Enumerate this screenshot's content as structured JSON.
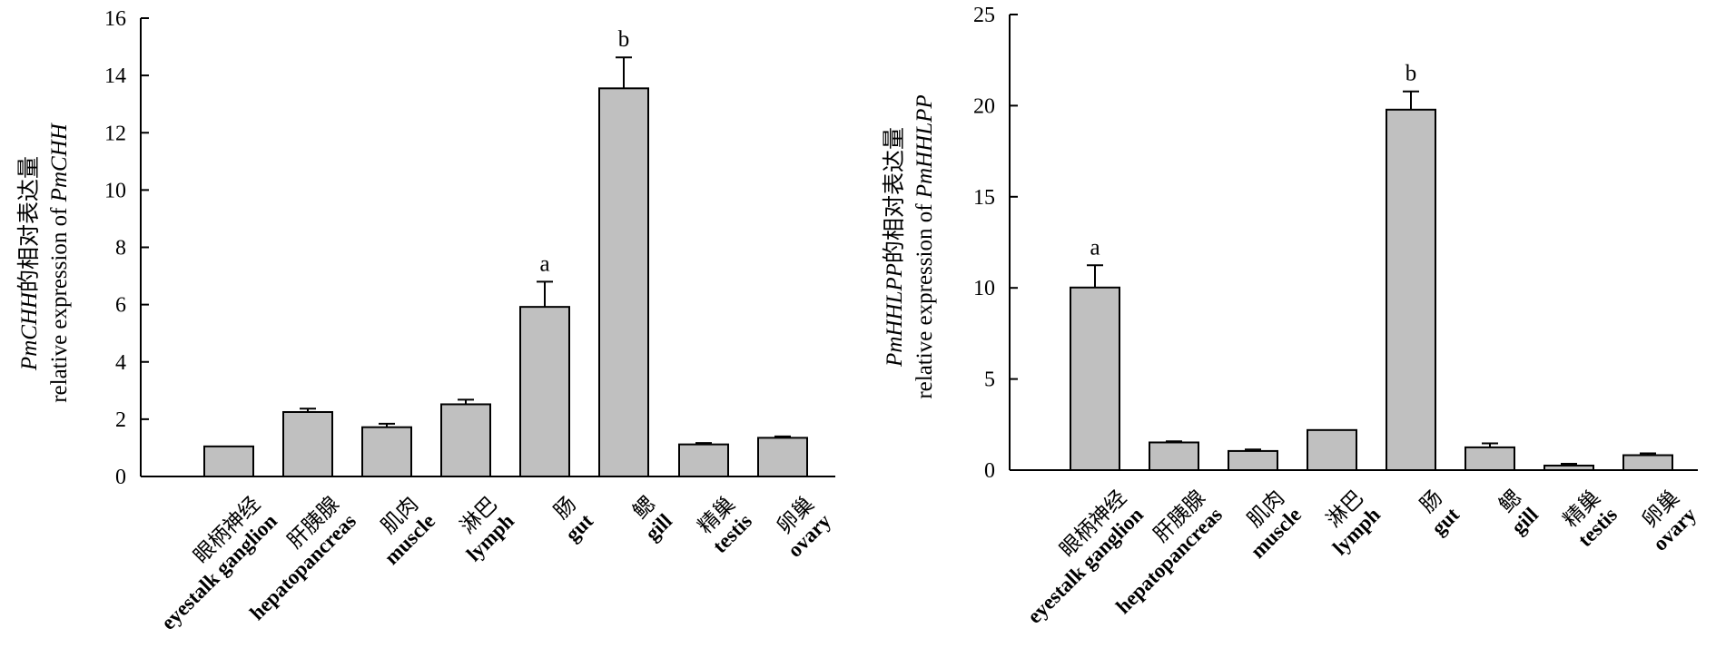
{
  "chart_data": [
    {
      "type": "bar",
      "ylabel_line1": "PmCHH的相对表达量",
      "ylabel_line2": "relative expression of PmCHH",
      "ylim": [
        0,
        16
      ],
      "yticks": [
        0,
        2,
        4,
        6,
        8,
        10,
        12,
        14,
        16
      ],
      "grid": false,
      "bar_color": "#c0c0c0",
      "categories": [
        {
          "zh": "眼柄神经",
          "en": "eyestalk ganglion"
        },
        {
          "zh": "肝胰腺",
          "en": "hepatopancreas"
        },
        {
          "zh": "肌肉",
          "en": "muscle"
        },
        {
          "zh": "淋巴",
          "en": "lymph"
        },
        {
          "zh": "肠",
          "en": "gut"
        },
        {
          "zh": "鳃",
          "en": "gill"
        },
        {
          "zh": "精巢",
          "en": "testis"
        },
        {
          "zh": "卵巢",
          "en": "ovary"
        }
      ],
      "values": [
        1.05,
        2.25,
        1.72,
        2.52,
        5.92,
        13.55,
        1.12,
        1.35
      ],
      "errors": [
        0,
        0.12,
        0.12,
        0.16,
        0.88,
        1.08,
        0.05,
        0.05
      ],
      "significance": [
        "",
        "",
        "",
        "",
        "a",
        "b",
        "",
        ""
      ]
    },
    {
      "type": "bar",
      "ylabel_line1": "PmHHLPP的相对表达量",
      "ylabel_line2": "relative expression of PmHHLPP",
      "ylim": [
        0,
        25
      ],
      "yticks": [
        0,
        5,
        10,
        15,
        20,
        25
      ],
      "grid": false,
      "bar_color": "#c0c0c0",
      "categories": [
        {
          "zh": "眼柄神经",
          "en": "eyestalk ganglion"
        },
        {
          "zh": "肝胰腺",
          "en": "hepatopancreas"
        },
        {
          "zh": "肌肉",
          "en": "muscle"
        },
        {
          "zh": "淋巴",
          "en": "lymph"
        },
        {
          "zh": "肠",
          "en": "gut"
        },
        {
          "zh": "鳃",
          "en": "gill"
        },
        {
          "zh": "精巢",
          "en": "testis"
        },
        {
          "zh": "卵巢",
          "en": "ovary"
        }
      ],
      "values": [
        10.02,
        1.52,
        1.05,
        2.2,
        19.78,
        1.25,
        0.25,
        0.82
      ],
      "errors": [
        1.22,
        0.06,
        0.08,
        0,
        1.0,
        0.22,
        0.1,
        0.1
      ],
      "significance": [
        "a",
        "",
        "",
        "",
        "b",
        "",
        "",
        ""
      ]
    }
  ]
}
